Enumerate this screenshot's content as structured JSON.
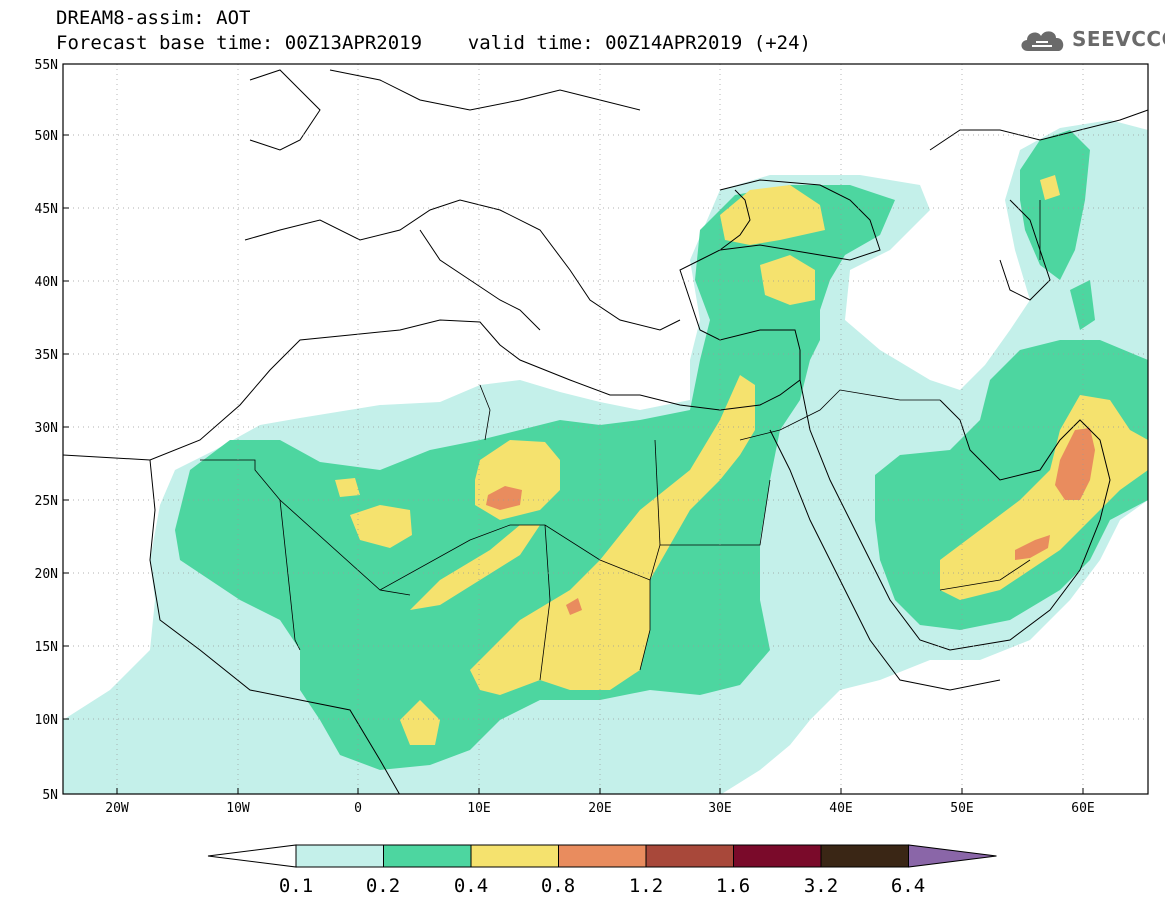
{
  "header": {
    "title": "DREAM8-assim: AOT",
    "subtitle": "Forecast base time: 00Z13APR2019    valid time: 00Z14APR2019 (+24)"
  },
  "logo": {
    "text": "SEEVCCC",
    "icon": "cloud-icon"
  },
  "map": {
    "projection": "lat-lon",
    "lon_range": [
      -25,
      65
    ],
    "lat_range": [
      5,
      55
    ],
    "lat_labels": [
      "55N",
      "50N",
      "45N",
      "40N",
      "35N",
      "30N",
      "25N",
      "20N",
      "15N",
      "10N",
      "5N"
    ],
    "lon_labels": [
      "20W",
      "10W",
      "0",
      "10E",
      "20E",
      "30E",
      "40E",
      "50E",
      "60E"
    ],
    "grid": true
  },
  "colorbar": {
    "levels": [
      "0.1",
      "0.2",
      "0.4",
      "0.8",
      "1.2",
      "1.6",
      "3.2",
      "6.4"
    ],
    "colors": [
      "#ffffff",
      "#c4f0ea",
      "#4dd6a0",
      "#f5e26e",
      "#e98c5e",
      "#a8483a",
      "#7a0a2a",
      "#3a2615",
      "#8a66a8"
    ]
  }
}
